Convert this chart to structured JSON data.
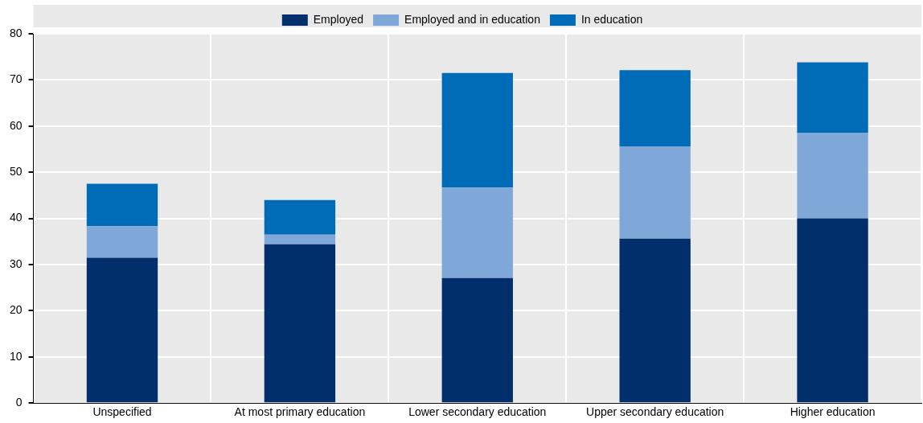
{
  "chart_data": {
    "type": "bar",
    "stacked": true,
    "categories": [
      "Unspecified",
      "At most primary education",
      "Lower secondary education",
      "Upper secondary education",
      "Higher education"
    ],
    "series": [
      {
        "name": "Employed",
        "color": "#002f6c",
        "values": [
          31.5,
          34.4,
          27.1,
          35.6,
          40.0
        ]
      },
      {
        "name": "Employed and in education",
        "color": "#7fa8d9",
        "values": [
          6.8,
          2.1,
          19.6,
          20.0,
          18.5
        ]
      },
      {
        "name": "In education",
        "color": "#006bb6",
        "values": [
          9.2,
          7.5,
          24.8,
          16.5,
          15.3
        ]
      }
    ],
    "ylim": [
      0,
      80
    ],
    "yticks": [
      0,
      10,
      20,
      30,
      40,
      50,
      60,
      70,
      80
    ],
    "grid": true,
    "legend": "top"
  }
}
